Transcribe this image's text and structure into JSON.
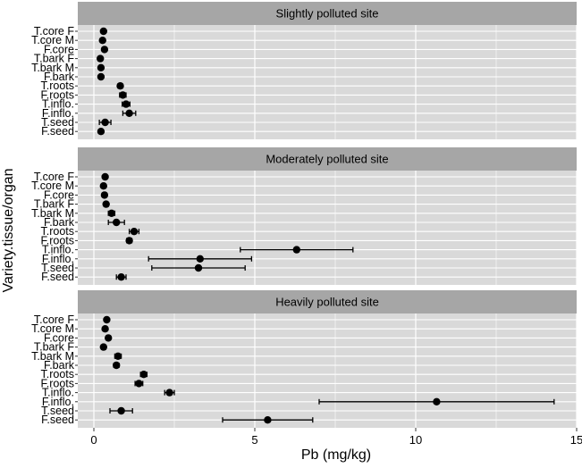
{
  "chart_data": {
    "type": "scatter",
    "xlabel": "Pb (mg/kg)",
    "ylabel": "Variety.tissue/organ",
    "xlim": [
      -0.5,
      15.0
    ],
    "x_ticks": [
      0,
      5,
      10,
      15
    ],
    "x_tick_labels": [
      "0",
      "5",
      "10",
      "15"
    ],
    "grid": true,
    "error_bars": true,
    "colors": {
      "panel_bg": "#d9d9d9",
      "strip_bg": "#a6a6a6",
      "grid": "#ffffff",
      "points": "#000000"
    },
    "categories": [
      "T.core F",
      "T.core M",
      "F.core",
      "T.bark F",
      "T.bark M",
      "F.bark",
      "T.roots",
      "F.roots",
      "T.inflo.",
      "F.inflo.",
      "T.seed",
      "F.seed"
    ],
    "panels": [
      {
        "title": "Slightly polluted site",
        "values": [
          0.3,
          0.27,
          0.33,
          0.2,
          0.22,
          0.22,
          0.82,
          0.9,
          1.0,
          1.1,
          0.35,
          0.22
        ],
        "errors": [
          0.05,
          0.05,
          0.05,
          0.05,
          0.05,
          0.05,
          0.07,
          0.1,
          0.12,
          0.2,
          0.18,
          0.05
        ]
      },
      {
        "title": "Moderately polluted site",
        "values": [
          0.35,
          0.3,
          0.33,
          0.38,
          0.55,
          0.7,
          1.25,
          1.1,
          6.3,
          3.3,
          3.25,
          0.85
        ],
        "errors": [
          0.05,
          0.05,
          0.05,
          0.05,
          0.1,
          0.25,
          0.15,
          0.08,
          1.75,
          1.6,
          1.45,
          0.15
        ]
      },
      {
        "title": "Heavily polluted site",
        "values": [
          0.4,
          0.35,
          0.45,
          0.3,
          0.75,
          0.7,
          1.55,
          1.4,
          2.35,
          10.65,
          0.85,
          5.4
        ],
        "errors": [
          0.05,
          0.05,
          0.05,
          0.05,
          0.1,
          0.08,
          0.1,
          0.12,
          0.15,
          3.65,
          0.35,
          1.4
        ]
      }
    ]
  }
}
